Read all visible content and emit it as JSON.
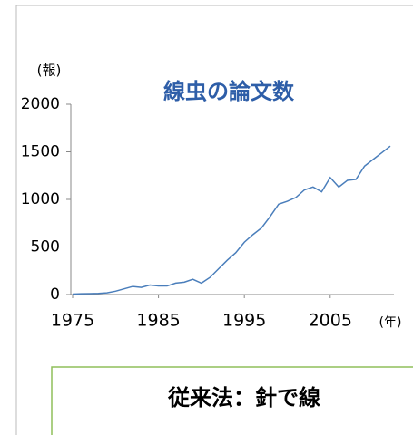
{
  "chart_data": {
    "type": "line",
    "title": "線虫の論文数",
    "y_label": "(報)",
    "x_label": "(年)",
    "x": [
      1975,
      1976,
      1977,
      1978,
      1979,
      1980,
      1981,
      1982,
      1983,
      1984,
      1985,
      1986,
      1987,
      1988,
      1989,
      1990,
      1991,
      1992,
      1993,
      1994,
      1995,
      1996,
      1997,
      1998,
      1999,
      2000,
      2001,
      2002,
      2003,
      2004,
      2005,
      2006,
      2007,
      2008,
      2009,
      2010,
      2011,
      2012
    ],
    "values": [
      5,
      8,
      10,
      12,
      18,
      35,
      60,
      85,
      75,
      100,
      90,
      90,
      120,
      130,
      160,
      120,
      180,
      270,
      360,
      440,
      550,
      630,
      700,
      820,
      950,
      980,
      1020,
      1100,
      1130,
      1080,
      1230,
      1130,
      1200,
      1210,
      1350,
      1420,
      1490,
      1560
    ],
    "color": "#4a7ebb",
    "xlim": [
      1975,
      2012
    ],
    "xticks": [
      1975,
      1985,
      1995,
      2005
    ],
    "ylim": [
      0,
      2000
    ],
    "yticks": [
      0,
      500,
      1000,
      1500,
      2000
    ],
    "annotation": "従来法：針で線"
  }
}
